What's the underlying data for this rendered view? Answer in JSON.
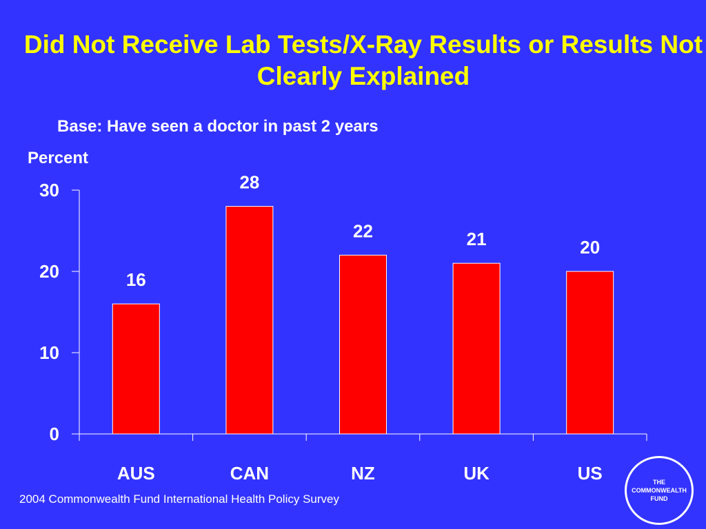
{
  "slide": {
    "title": "Did Not Receive Lab Tests/X-Ray Results or Results Not Clearly Explained",
    "footer": "2004 Commonwealth Fund International Health Policy Survey",
    "logo_text": "THE COMMONWEALTH FUND"
  },
  "colors": {
    "background": "#3333ff",
    "title": "#ffff00",
    "bar": "#ff0000",
    "text": "#ffffff"
  },
  "chart_data": {
    "type": "bar",
    "title": "Did Not Receive Lab Tests/X-Ray Results or Results Not Clearly Explained",
    "subtitle": "Base: Have seen a doctor in past 2 years",
    "ylabel": "Percent",
    "xlabel": "",
    "categories": [
      "AUS",
      "CAN",
      "NZ",
      "UK",
      "US"
    ],
    "values": [
      16,
      28,
      22,
      21,
      20
    ],
    "ylim": [
      0,
      30
    ],
    "yticks": [
      0,
      10,
      20,
      30
    ],
    "grid": false,
    "data_labels": true
  }
}
